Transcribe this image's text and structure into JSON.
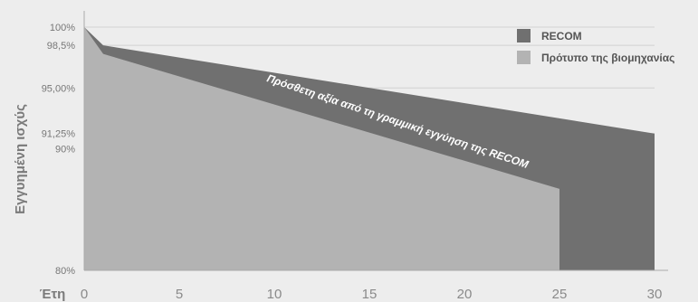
{
  "chart_data": {
    "type": "area",
    "ylabel": "Εγγυημένη ισχύς",
    "xlabel": "Έτη",
    "xlim": [
      0,
      30
    ],
    "ylim": [
      80,
      100
    ],
    "x_ticks": [
      0,
      5,
      10,
      15,
      20,
      25,
      30
    ],
    "y_ticks": [
      {
        "value": 100,
        "label": "100%"
      },
      {
        "value": 98.5,
        "label": "98,5%"
      },
      {
        "value": 95,
        "label": "95,00%"
      },
      {
        "value": 91.25,
        "label": "91,25%"
      },
      {
        "value": 90,
        "label": "90%"
      },
      {
        "value": 80,
        "label": "80%"
      }
    ],
    "grid": true,
    "legend_position": "top-right",
    "series": [
      {
        "name": "RECOM",
        "color": "#707070",
        "x": [
          0,
          1,
          30
        ],
        "y": [
          100,
          98.5,
          91.25
        ]
      },
      {
        "name": "Πρότυπο της βιομηχανίας",
        "color": "#b3b3b3",
        "x": [
          0,
          1,
          25
        ],
        "y": [
          100,
          97.8,
          86.7
        ]
      }
    ],
    "annotation": "Πρόσθετη αξία από τη γραμμική εγγύηση της RECOM"
  }
}
